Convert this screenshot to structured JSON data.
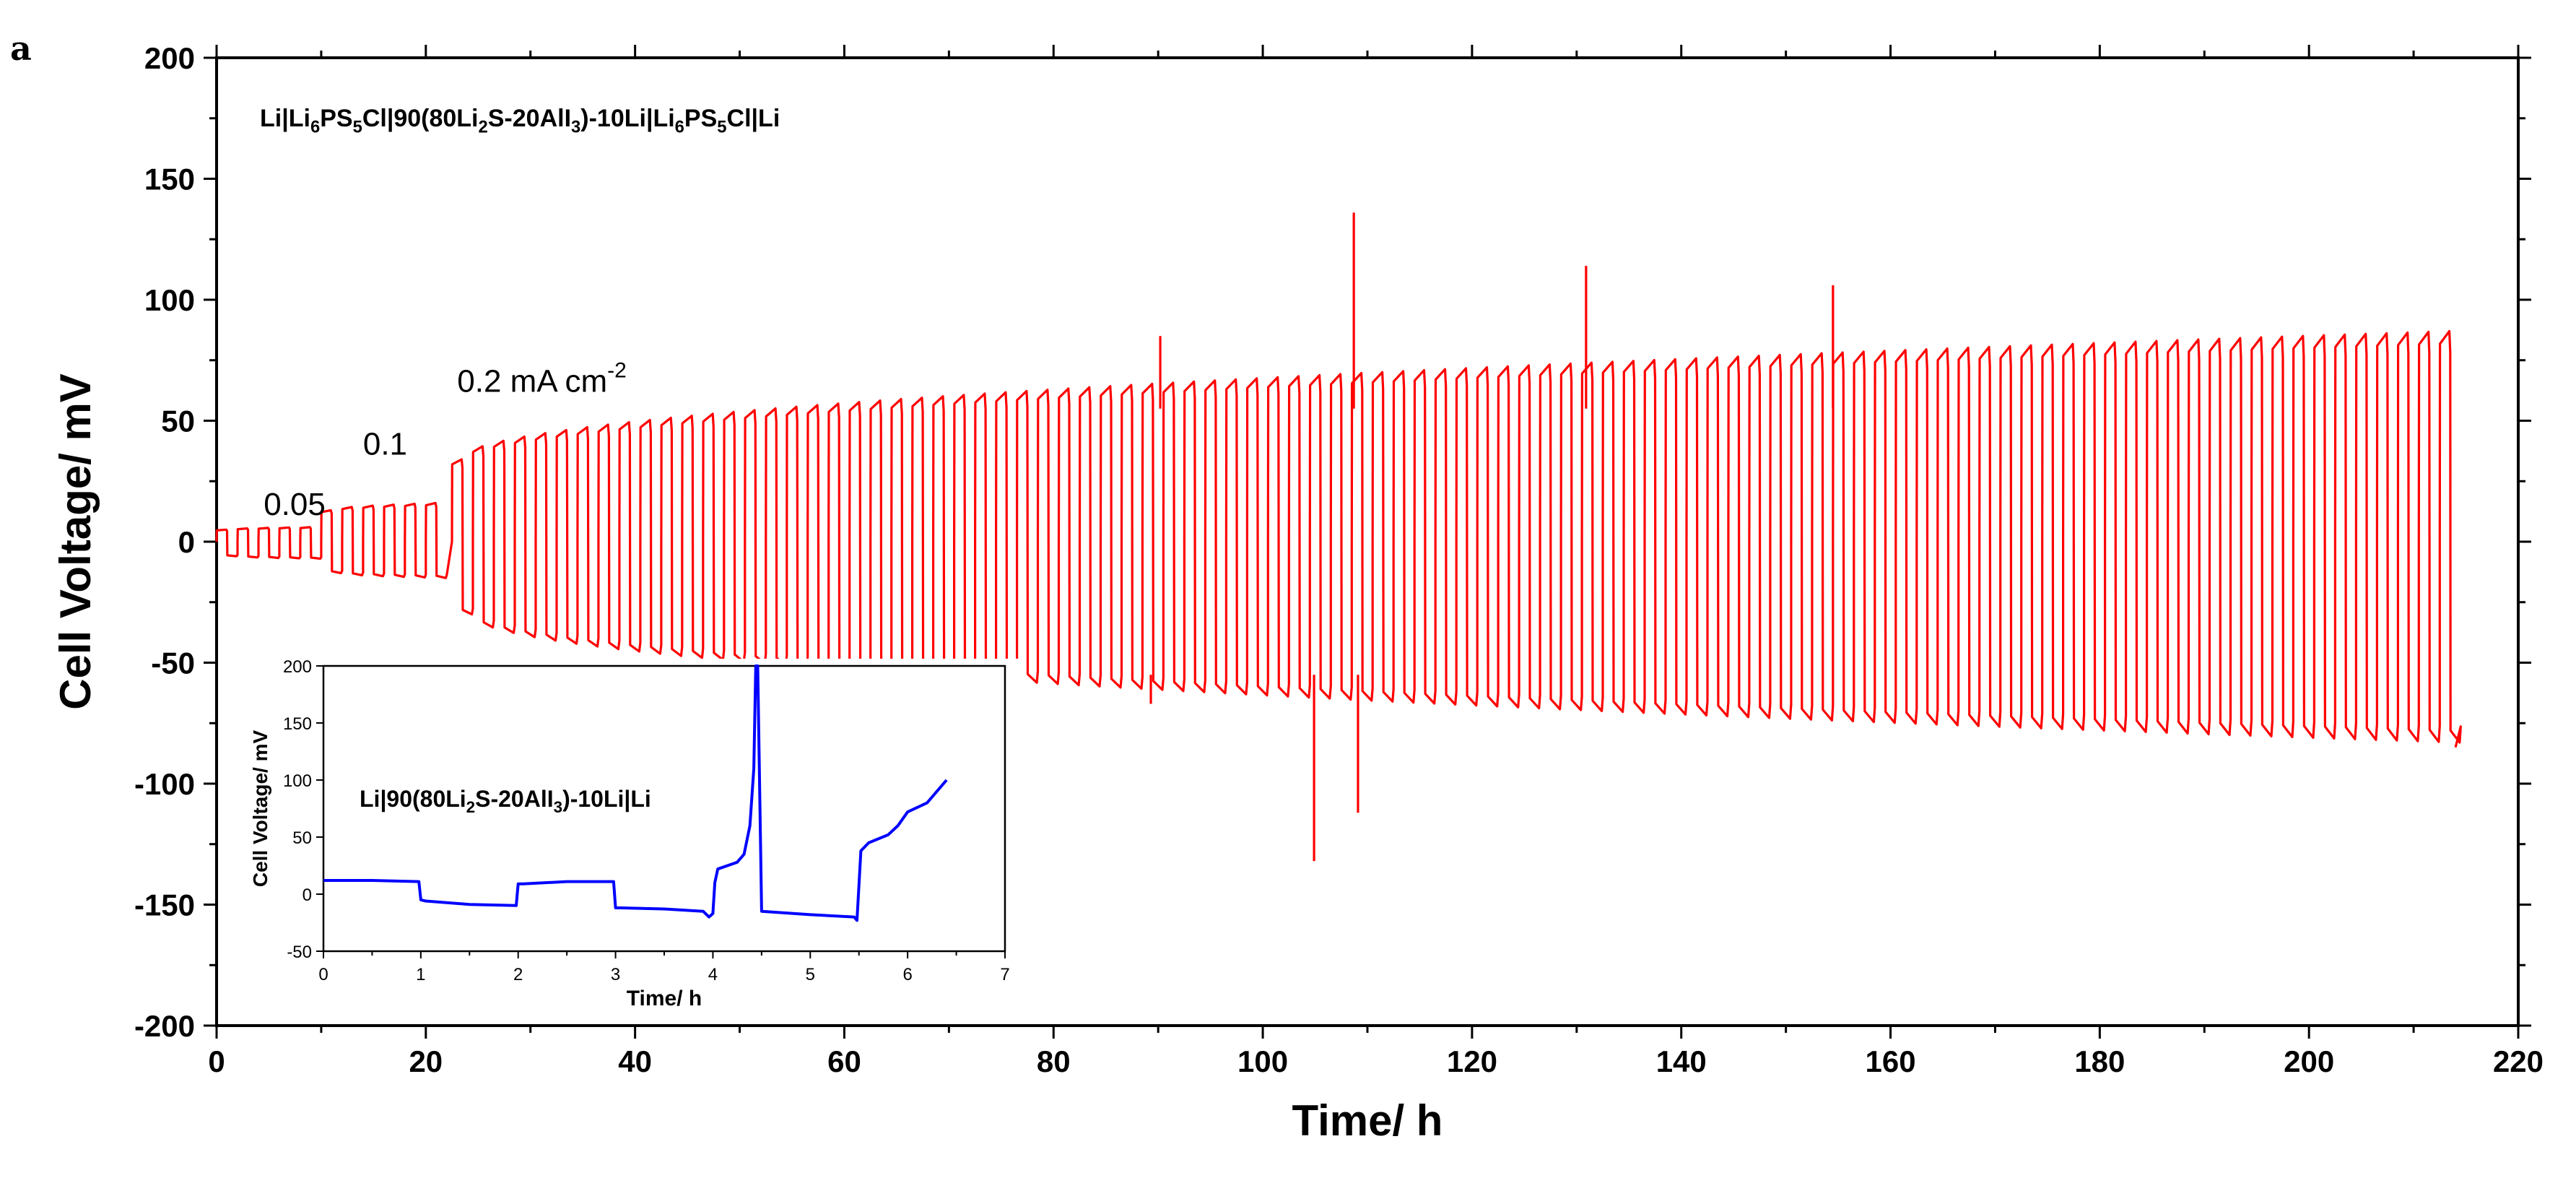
{
  "panel_label": "a",
  "chart_data": [
    {
      "type": "line",
      "title": "Li|Li6PS5Cl|90(80Li2S-20AlI3)-10Li|Li6PS5Cl|Li",
      "title_parts": [
        {
          "t": "Li|Li",
          "s": "base"
        },
        {
          "t": "6",
          "s": "sub"
        },
        {
          "t": "PS",
          "s": "base"
        },
        {
          "t": "5",
          "s": "sub"
        },
        {
          "t": "Cl|90(80Li",
          "s": "base"
        },
        {
          "t": "2",
          "s": "sub"
        },
        {
          "t": "S-20AlI",
          "s": "base"
        },
        {
          "t": "3",
          "s": "sub"
        },
        {
          "t": ")-10Li|Li",
          "s": "base"
        },
        {
          "t": "6",
          "s": "sub"
        },
        {
          "t": "PS",
          "s": "base"
        },
        {
          "t": "5",
          "s": "sub"
        },
        {
          "t": "Cl|Li",
          "s": "base"
        }
      ],
      "xlabel": "Time/ h",
      "ylabel": "Cell Voltage/ mV",
      "xlim": [
        0,
        220
      ],
      "ylim": [
        -200,
        200
      ],
      "xticks": [
        0,
        20,
        40,
        60,
        80,
        100,
        120,
        140,
        160,
        180,
        200,
        220
      ],
      "yticks": [
        -200,
        -150,
        -100,
        -50,
        0,
        50,
        100,
        150,
        200
      ],
      "color": "#ff0000",
      "annotations": [
        {
          "text": "0.05",
          "x": 4.5,
          "y": 11
        },
        {
          "text": "0.1",
          "x": 14,
          "y": 36
        },
        {
          "text": "0.2 mA cm",
          "sup": "-2",
          "x": 23,
          "y": 62
        }
      ],
      "segments": [
        {
          "current": "0.05 mA cm-2",
          "t_start": 0,
          "t_end": 10,
          "half_period_h": 1,
          "pos_start": 5,
          "pos_end": 6,
          "neg_start": -6,
          "neg_end": -7
        },
        {
          "current": "0.1 mA cm-2",
          "t_start": 10,
          "t_end": 22.5,
          "half_period_h": 1,
          "pos_start": 13,
          "pos_end": 16,
          "neg_start": -13,
          "neg_end": -15
        },
        {
          "current": "0.2 mA cm-2",
          "t_start": 22.5,
          "t_end": 213.5,
          "half_period_h": 1,
          "pos_start": 34,
          "pos_end": 87,
          "neg_start": -30,
          "neg_end": -83
        }
      ],
      "spikes": [
        {
          "x": 90.2,
          "y": 85
        },
        {
          "x": 89.3,
          "y": -67
        },
        {
          "x": 104.9,
          "y": -132
        },
        {
          "x": 108.7,
          "y": 136
        },
        {
          "x": 109.1,
          "y": -112
        },
        {
          "x": 130.9,
          "y": 114
        },
        {
          "x": 154.5,
          "y": 106
        }
      ]
    },
    {
      "type": "line",
      "title": "Li|90(80Li2S-20AlI3)-10Li|Li",
      "title_parts": [
        {
          "t": "Li|90(80Li",
          "s": "base"
        },
        {
          "t": "2",
          "s": "sub"
        },
        {
          "t": "S-20AlI",
          "s": "base"
        },
        {
          "t": "3",
          "s": "sub"
        },
        {
          "t": ")-10Li|Li",
          "s": "base"
        }
      ],
      "xlabel": "Time/ h",
      "ylabel": "Cell Voltage/ mV",
      "xlim": [
        0,
        7
      ],
      "ylim": [
        -50,
        200
      ],
      "xticks": [
        0,
        1,
        2,
        3,
        4,
        5,
        6,
        7
      ],
      "yticks": [
        -50,
        0,
        50,
        100,
        150,
        200
      ],
      "color": "#0000ff",
      "x": [
        0,
        0.5,
        0.98,
        1.0,
        1.05,
        1.5,
        1.98,
        2.0,
        2.05,
        2.5,
        2.98,
        3.0,
        3.05,
        3.5,
        3.9,
        3.96,
        4.0,
        4.02,
        4.05,
        4.25,
        4.32,
        4.38,
        4.42,
        4.44,
        4.46,
        4.5,
        5.0,
        5.45,
        5.48,
        5.52,
        5.6,
        5.8,
        5.9,
        6.0,
        6.2,
        6.4
      ],
      "y": [
        12,
        12,
        11,
        -5,
        -6,
        -9,
        -10,
        9,
        9,
        11,
        11,
        -12,
        -12,
        -13,
        -15,
        -20,
        -17,
        10,
        22,
        28,
        35,
        60,
        110,
        200,
        200,
        -15,
        -18,
        -20,
        -23,
        38,
        45,
        52,
        60,
        72,
        80,
        100
      ]
    }
  ]
}
